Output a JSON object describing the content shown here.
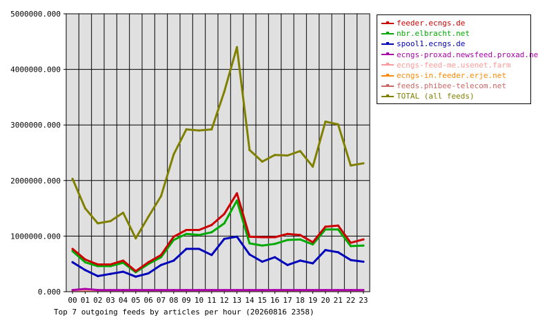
{
  "chart_data": {
    "type": "line",
    "title": "Top 7 outgoing feeds by articles per hour (20260816 2358)",
    "xlabel": "",
    "ylabel": "",
    "ylim": [
      0,
      5000000
    ],
    "yticks": [
      "0.000",
      "1000000.000",
      "2000000.000",
      "3000000.000",
      "4000000.000",
      "5000000.000"
    ],
    "categories": [
      "00",
      "01",
      "02",
      "03",
      "04",
      "05",
      "06",
      "07",
      "08",
      "09",
      "10",
      "11",
      "12",
      "13",
      "14",
      "15",
      "16",
      "17",
      "18",
      "19",
      "20",
      "21",
      "22",
      "23"
    ],
    "grid": true,
    "legend_position": "right",
    "series": [
      {
        "name": "feeder.ecngs.de",
        "color": "#cc0000",
        "values": [
          770000,
          580000,
          490000,
          490000,
          560000,
          370000,
          530000,
          660000,
          990000,
          1110000,
          1110000,
          1200000,
          1400000,
          1770000,
          990000,
          980000,
          980000,
          1040000,
          1020000,
          890000,
          1170000,
          1190000,
          880000,
          940000
        ]
      },
      {
        "name": "nbr.elbracht.net",
        "color": "#00aa00",
        "values": [
          730000,
          530000,
          460000,
          460000,
          520000,
          350000,
          500000,
          620000,
          930000,
          1040000,
          1020000,
          1070000,
          1230000,
          1640000,
          870000,
          830000,
          860000,
          930000,
          940000,
          850000,
          1120000,
          1120000,
          820000,
          830000
        ]
      },
      {
        "name": "spool1.ecngs.de",
        "color": "#0000bb",
        "values": [
          530000,
          390000,
          280000,
          320000,
          360000,
          270000,
          330000,
          480000,
          560000,
          770000,
          770000,
          660000,
          950000,
          990000,
          670000,
          540000,
          620000,
          480000,
          560000,
          510000,
          750000,
          710000,
          570000,
          540000
        ]
      },
      {
        "name": "ecngs-proxad.newsfeed.proxad.net",
        "color": "#aa00aa",
        "values": [
          30000,
          50000,
          30000,
          30000,
          30000,
          30000,
          30000,
          30000,
          30000,
          30000,
          30000,
          30000,
          30000,
          30000,
          30000,
          30000,
          30000,
          30000,
          30000,
          30000,
          30000,
          30000,
          30000,
          30000
        ]
      },
      {
        "name": "ecngs-feed-me.usenet.farm",
        "color": "#ff9999",
        "values": [
          25000,
          30000,
          25000,
          25000,
          25000,
          25000,
          25000,
          25000,
          25000,
          25000,
          25000,
          25000,
          25000,
          25000,
          25000,
          25000,
          25000,
          30000,
          25000,
          25000,
          25000,
          25000,
          25000,
          25000
        ]
      },
      {
        "name": "ecngs-in.feeder.erje.net",
        "color": "#ff8800",
        "values": [
          20000,
          20000,
          20000,
          20000,
          20000,
          20000,
          20000,
          20000,
          20000,
          20000,
          20000,
          20000,
          20000,
          20000,
          20000,
          20000,
          20000,
          20000,
          20000,
          20000,
          20000,
          20000,
          20000,
          20000
        ]
      },
      {
        "name": "feeds.phibee-telecom.net",
        "color": "#cc6666",
        "values": [
          15000,
          15000,
          15000,
          15000,
          15000,
          15000,
          15000,
          15000,
          15000,
          15000,
          15000,
          15000,
          15000,
          15000,
          15000,
          15000,
          15000,
          15000,
          15000,
          15000,
          15000,
          15000,
          15000,
          15000
        ]
      },
      {
        "name": "TOTAL (all feeds)",
        "color": "#808000",
        "values": [
          2030000,
          1500000,
          1230000,
          1270000,
          1420000,
          960000,
          1350000,
          1720000,
          2470000,
          2920000,
          2900000,
          2920000,
          3600000,
          4400000,
          2550000,
          2340000,
          2460000,
          2450000,
          2530000,
          2250000,
          3060000,
          3010000,
          2270000,
          2310000
        ]
      }
    ]
  }
}
